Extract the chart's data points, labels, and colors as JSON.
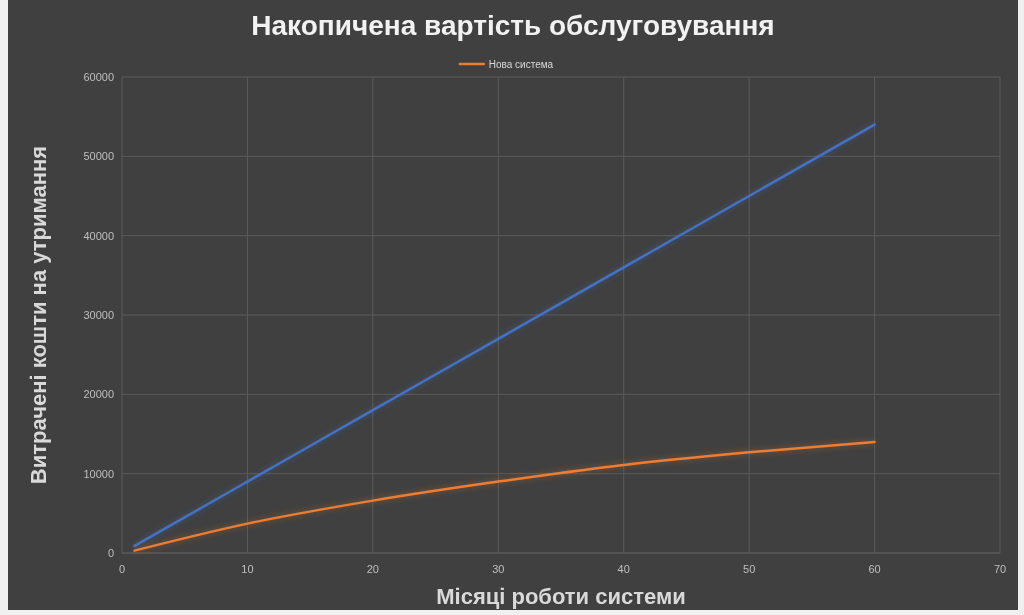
{
  "chart_data": {
    "type": "line",
    "title": "Накопичена вартість обслуговування",
    "xlabel": "Місяці роботи системи",
    "ylabel": "Витрачені кошти на утримання",
    "x": [
      1,
      10,
      20,
      30,
      40,
      50,
      60
    ],
    "series": [
      {
        "color": "#4472c4",
        "values": [
          900,
          9000,
          18000,
          27000,
          36000,
          45000,
          54000
        ]
      },
      {
        "name": "Нова система",
        "color": "#ed7d31",
        "values": [
          300,
          3700,
          6600,
          9000,
          11100,
          12700,
          14000
        ]
      }
    ],
    "xlim": [
      0,
      70
    ],
    "xticks": [
      0,
      10,
      20,
      30,
      40,
      50,
      60,
      70
    ],
    "ylim": [
      0,
      60000
    ],
    "yticks": [
      0,
      10000,
      20000,
      30000,
      40000,
      50000,
      60000
    ],
    "grid": true,
    "legend": "top",
    "marker": "none",
    "line_style": "solid"
  }
}
